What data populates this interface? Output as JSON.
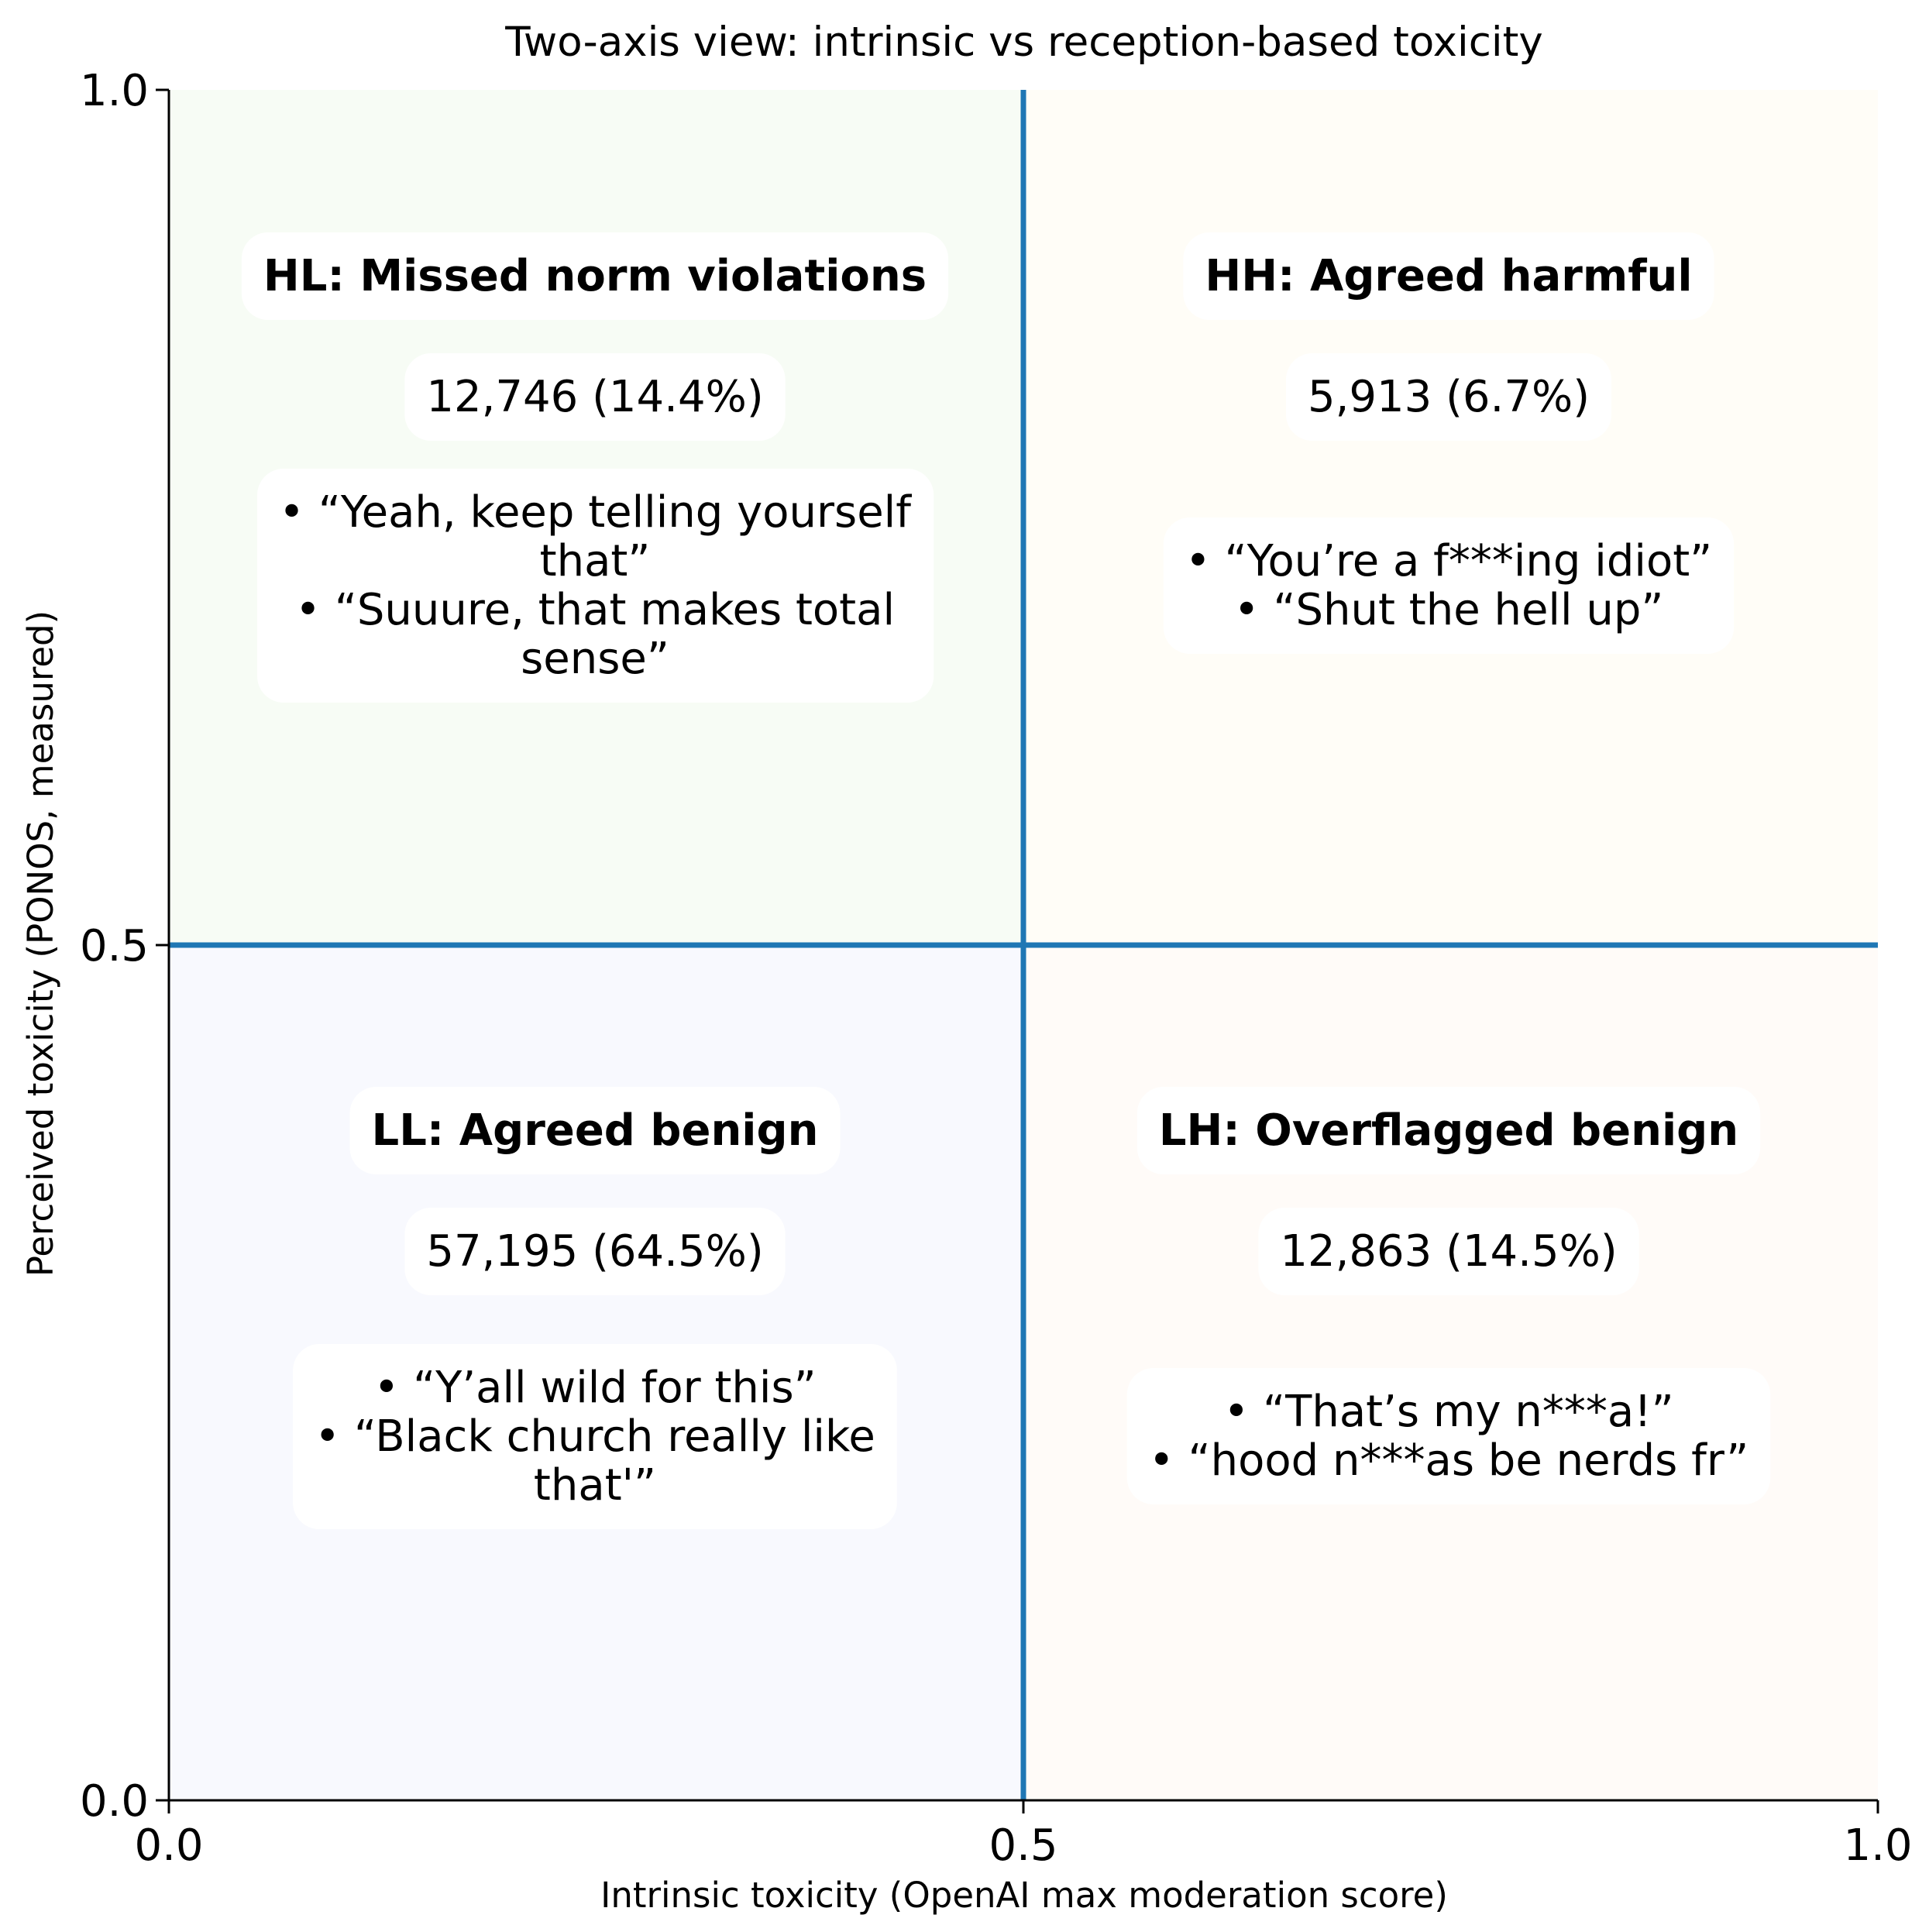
{
  "chart_data": {
    "type": "quadrant",
    "title": "Two-axis view: intrinsic vs reception-based toxicity",
    "xlabel": "Intrinsic toxicity (OpenAI max moderation score)",
    "ylabel": "Perceived toxicity (PONOS, measured)",
    "xlim": [
      0,
      1
    ],
    "ylim": [
      0,
      1
    ],
    "xticks": [
      0.0,
      0.5,
      1.0
    ],
    "xtick_labels": [
      "0.0",
      "0.5",
      "1.0"
    ],
    "yticks": [
      0.0,
      0.5,
      1.0
    ],
    "ytick_labels": [
      "0.0",
      "0.5",
      "1.0"
    ],
    "threshold_x": 0.5,
    "threshold_y": 0.5,
    "threshold_color": "#1f77b4",
    "quadrants": [
      {
        "id": "HL",
        "x_range": [
          0,
          0.5
        ],
        "y_range": [
          0.5,
          1
        ],
        "color": "#f7fcf5",
        "title": "HL: Missed norm violations",
        "count_text": "12,746 (14.4%)",
        "count": 12746,
        "percent": 14.4,
        "example_lines": [
          "• “Yeah, keep telling yourself",
          "that”",
          "• “Suuure, that makes total",
          "sense”"
        ]
      },
      {
        "id": "HH",
        "x_range": [
          0.5,
          1
        ],
        "y_range": [
          0.5,
          1
        ],
        "color": "#fffdf7",
        "title": "HH: Agreed harmful",
        "count_text": "5,913 (6.7%)",
        "count": 5913,
        "percent": 6.7,
        "example_lines": [
          "• “You’re a f***ing idiot”",
          "• “Shut the hell up”"
        ]
      },
      {
        "id": "LL",
        "x_range": [
          0,
          0.5
        ],
        "y_range": [
          0,
          0.5
        ],
        "color": "#f8f9fe",
        "title": "LL: Agreed benign",
        "count_text": "57,195 (64.5%)",
        "count": 57195,
        "percent": 64.5,
        "example_lines": [
          "• “Y’all wild for this”",
          "• “Black church really like",
          "that'”"
        ]
      },
      {
        "id": "LH",
        "x_range": [
          0.5,
          1
        ],
        "y_range": [
          0,
          0.5
        ],
        "color": "#fffbf8",
        "title": "LH: Overflagged benign",
        "count_text": "12,863 (14.5%)",
        "count": 12863,
        "percent": 14.5,
        "example_lines": [
          "• “That’s my n***a!”",
          "• “hood n***as be nerds fr”"
        ]
      }
    ]
  }
}
